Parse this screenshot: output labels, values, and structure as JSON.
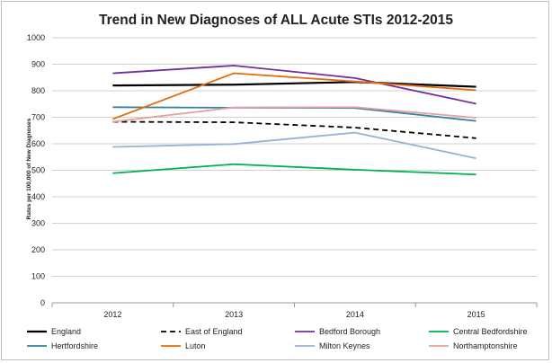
{
  "chart_data": {
    "type": "line",
    "title": "Trend in New Diagnoses of ALL  Acute  STIs 2012-2015",
    "xlabel": "",
    "ylabel": "Rates per 100,000 of New Diagnoses",
    "categories": [
      "2012",
      "2013",
      "2014",
      "2015"
    ],
    "ylim": [
      0,
      1000
    ],
    "yticks": [
      0,
      100,
      200,
      300,
      400,
      500,
      600,
      700,
      800,
      900,
      1000
    ],
    "grid": "horizontal",
    "legend_placement": "bottom",
    "series": [
      {
        "name": "England",
        "values": [
          820,
          823,
          833,
          815
        ],
        "color": "#000000",
        "dash": "solid",
        "width": 2.2
      },
      {
        "name": "East of England",
        "values": [
          683,
          681,
          661,
          621
        ],
        "color": "#000000",
        "dash": "dashed",
        "width": 1.8
      },
      {
        "name": "Bedford Borough",
        "values": [
          866,
          895,
          848,
          751
        ],
        "color": "#7030a0",
        "dash": "solid",
        "width": 1.8
      },
      {
        "name": "Central Bedfordshire",
        "values": [
          489,
          523,
          502,
          484
        ],
        "color": "#00b050",
        "dash": "solid",
        "width": 1.8
      },
      {
        "name": "Hertfordshire",
        "values": [
          738,
          736,
          735,
          686
        ],
        "color": "#31859c",
        "dash": "solid",
        "width": 1.8
      },
      {
        "name": "Luton",
        "values": [
          693,
          866,
          835,
          802
        ],
        "color": "#e46c0a",
        "dash": "solid",
        "width": 1.8
      },
      {
        "name": "Milton Keynes",
        "values": [
          588,
          599,
          642,
          545
        ],
        "color": "#95b3d7",
        "dash": "solid",
        "width": 1.8
      },
      {
        "name": "Northamptonshire",
        "values": [
          683,
          737,
          738,
          698
        ],
        "color": "#e6a0a0",
        "dash": "solid",
        "width": 1.8
      }
    ]
  }
}
